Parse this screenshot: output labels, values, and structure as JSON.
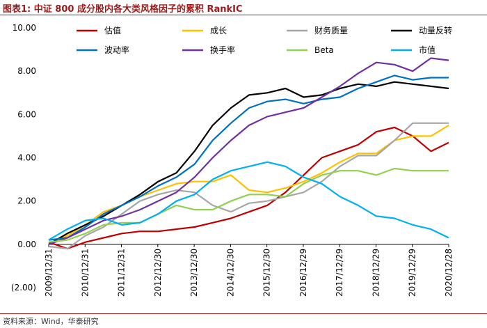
{
  "header": {
    "title": "图表1:   中证 800 成分股内各大类风格因子的累积 RankIC"
  },
  "footer": {
    "source": "资料来源：Wind，华泰研究"
  },
  "colors": {
    "accent": "#9b1b1b"
  },
  "chart_data": {
    "type": "line",
    "title": "",
    "xlabel": "",
    "ylabel": "",
    "ylim": [
      -2,
      10
    ],
    "yticks": [
      "(2.00)",
      "0.00",
      "2.00",
      "4.00",
      "6.00",
      "8.00",
      "10.00"
    ],
    "xticks": [
      "2009/12/31",
      "2010/12/31",
      "2011/12/31",
      "2012/12/30",
      "2013/12/30",
      "2014/12/30",
      "2015/12/30",
      "2016/12/29",
      "2017/12/29",
      "2018/12/29",
      "2019/12/29",
      "2020/12/28"
    ],
    "grid": false,
    "legend_position": "top",
    "x": [
      2009.99,
      2010.5,
      2011.0,
      2011.5,
      2012.0,
      2012.5,
      2013.0,
      2013.5,
      2014.0,
      2014.5,
      2015.0,
      2015.5,
      2016.0,
      2016.5,
      2017.0,
      2017.5,
      2018.0,
      2018.5,
      2019.0,
      2019.5,
      2020.0,
      2020.5,
      2020.99
    ],
    "series": [
      {
        "name": "估值",
        "color": "#c00000",
        "values": [
          0.1,
          -0.2,
          0.1,
          0.3,
          0.5,
          0.6,
          0.6,
          0.7,
          0.8,
          1.0,
          1.2,
          1.5,
          1.8,
          2.4,
          3.2,
          4.0,
          4.3,
          4.6,
          5.2,
          5.4,
          5.0,
          4.3,
          4.7
        ]
      },
      {
        "name": "成长",
        "color": "#ffc000",
        "values": [
          0.0,
          0.4,
          0.9,
          1.5,
          1.8,
          2.2,
          2.5,
          2.8,
          2.9,
          2.9,
          3.2,
          2.5,
          2.4,
          2.6,
          2.9,
          3.3,
          3.8,
          4.2,
          4.2,
          4.8,
          5.0,
          5.0,
          5.5
        ]
      },
      {
        "name": "财务质量",
        "color": "#a6a6a6",
        "values": [
          -0.1,
          -0.2,
          0.4,
          0.8,
          1.4,
          2.0,
          2.3,
          2.5,
          2.4,
          1.8,
          1.5,
          1.9,
          2.0,
          2.2,
          2.4,
          2.9,
          3.6,
          4.1,
          4.1,
          4.8,
          5.6,
          5.6,
          5.6
        ]
      },
      {
        "name": "动量反转",
        "color": "#000000",
        "values": [
          0.0,
          0.5,
          0.9,
          1.3,
          1.8,
          2.3,
          2.9,
          3.3,
          4.3,
          5.5,
          6.3,
          6.9,
          7.0,
          7.2,
          6.8,
          6.9,
          7.2,
          7.4,
          7.3,
          7.5,
          7.4,
          7.3,
          7.2
        ]
      },
      {
        "name": "波动率",
        "color": "#0070c0",
        "values": [
          0.2,
          0.3,
          0.8,
          1.4,
          1.8,
          2.2,
          2.7,
          3.1,
          3.7,
          4.8,
          5.6,
          6.3,
          6.6,
          6.7,
          6.5,
          6.7,
          6.8,
          7.2,
          7.5,
          7.8,
          7.6,
          7.7,
          7.7
        ]
      },
      {
        "name": "换手率",
        "color": "#7030a0",
        "values": [
          0.0,
          0.3,
          0.7,
          1.1,
          1.3,
          1.6,
          2.0,
          2.4,
          3.1,
          4.0,
          4.8,
          5.5,
          5.9,
          6.1,
          6.3,
          6.8,
          7.3,
          7.9,
          8.4,
          8.3,
          8.0,
          8.6,
          8.5
        ]
      },
      {
        "name": "Beta",
        "color": "#92d050",
        "values": [
          0.1,
          0.2,
          0.5,
          0.9,
          1.0,
          1.0,
          1.4,
          1.8,
          1.6,
          1.6,
          2.0,
          2.3,
          2.3,
          2.2,
          2.8,
          3.2,
          3.4,
          3.4,
          3.2,
          3.5,
          3.4,
          3.4,
          3.4
        ]
      },
      {
        "name": "市值",
        "color": "#00b0f0",
        "values": [
          0.2,
          0.7,
          1.1,
          1.2,
          0.9,
          1.0,
          1.4,
          2.0,
          2.3,
          3.0,
          3.4,
          3.6,
          3.8,
          3.6,
          3.1,
          2.8,
          2.2,
          1.8,
          1.3,
          1.2,
          0.9,
          0.7,
          0.3
        ]
      }
    ]
  }
}
